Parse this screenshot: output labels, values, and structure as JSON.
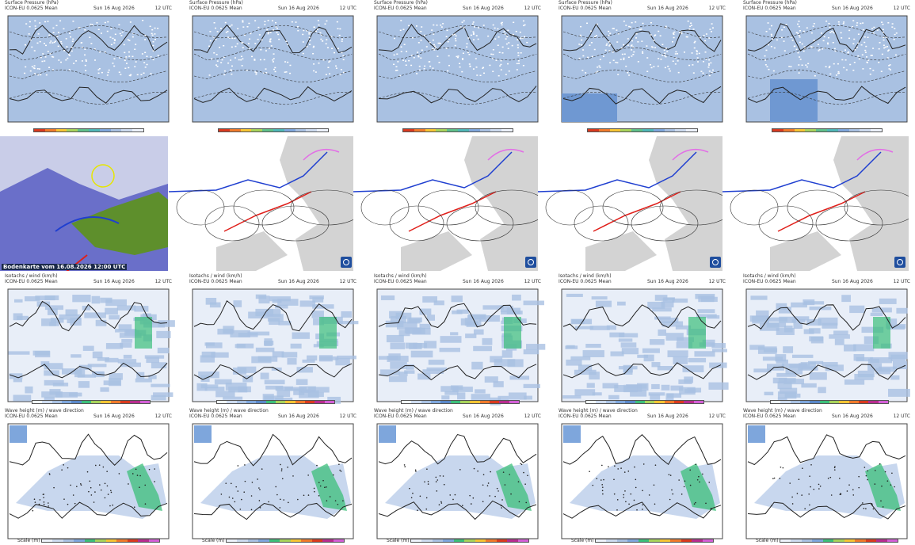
{
  "grid": {
    "columns": 5,
    "row1": {
      "title": "Surface Pressure (hPa)",
      "model": "ICON-EU 0.0625 Mean",
      "date": "Sun 16 Aug 2026",
      "time": "12 UTC"
    },
    "row3": {
      "title": "Isotachs / wind (km/h)",
      "model": "ICON-EU 0.0625 Mean",
      "date": "Sun 16 Aug 2026",
      "time": "12 UTC"
    },
    "row4": {
      "title": "Wave height (m) / wave direction",
      "model": "ICON-EU 0.0625 Mean",
      "date": "Sun 16 Aug 2026",
      "time": "12 UTC",
      "scale_label": "Scale (m)"
    }
  },
  "satellite": {
    "caption": "Bodenkarte vom 16.08.2026 12:00 UTC"
  },
  "colors": {
    "sea_blue": "#a9c1e2",
    "land_gray": "#d3d3d3",
    "warm_front": "#e0201b",
    "cold_front": "#1f3fd0",
    "occluded_front": "#e26ee6",
    "wave_green": "#3cbf7a"
  },
  "icons": [
    "dwd-logo-icon"
  ]
}
